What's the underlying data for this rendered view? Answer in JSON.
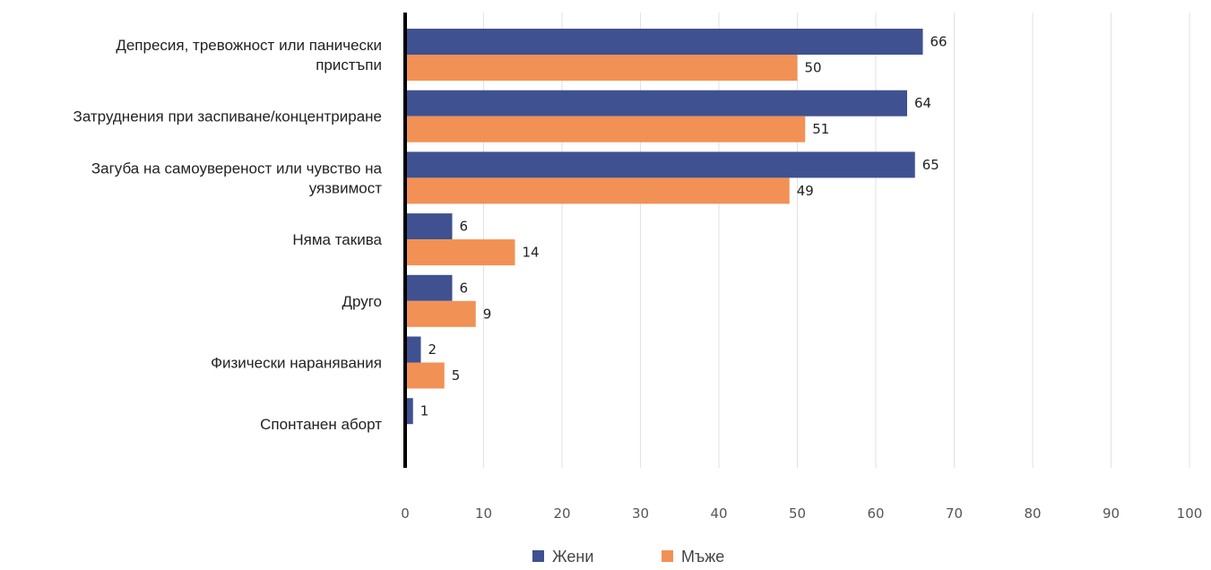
{
  "chart_data": {
    "type": "bar",
    "orientation": "horizontal",
    "categories": [
      [
        "Депресия, тревожност или панически",
        "пристъпи"
      ],
      [
        "Затруднения при заспиване/концентриране"
      ],
      [
        "Загуба на самоувереност или чувство на",
        "уязвимост"
      ],
      [
        "Няма такива"
      ],
      [
        "Друго"
      ],
      [
        "Физически наранявания"
      ],
      [
        "Спонтанен аборт"
      ]
    ],
    "series": [
      {
        "name": "Жени",
        "color": "#3F5190",
        "values": [
          66,
          64,
          65,
          6,
          6,
          2,
          1
        ],
        "value_labels": [
          "66",
          "64",
          "65",
          "6",
          "6",
          "2",
          "1"
        ]
      },
      {
        "name": "Мъже",
        "color": "#F29155",
        "values": [
          50,
          51,
          49,
          14,
          9,
          5,
          null
        ],
        "value_labels": [
          "50",
          "51",
          "49",
          "14",
          "9",
          "5",
          ""
        ]
      }
    ],
    "xlim": [
      0,
      100
    ],
    "xticks": [
      "0",
      "10",
      "20",
      "30",
      "40",
      "50",
      "60",
      "70",
      "80",
      "90",
      "100"
    ],
    "grid": true,
    "legend_position": "bottom"
  }
}
